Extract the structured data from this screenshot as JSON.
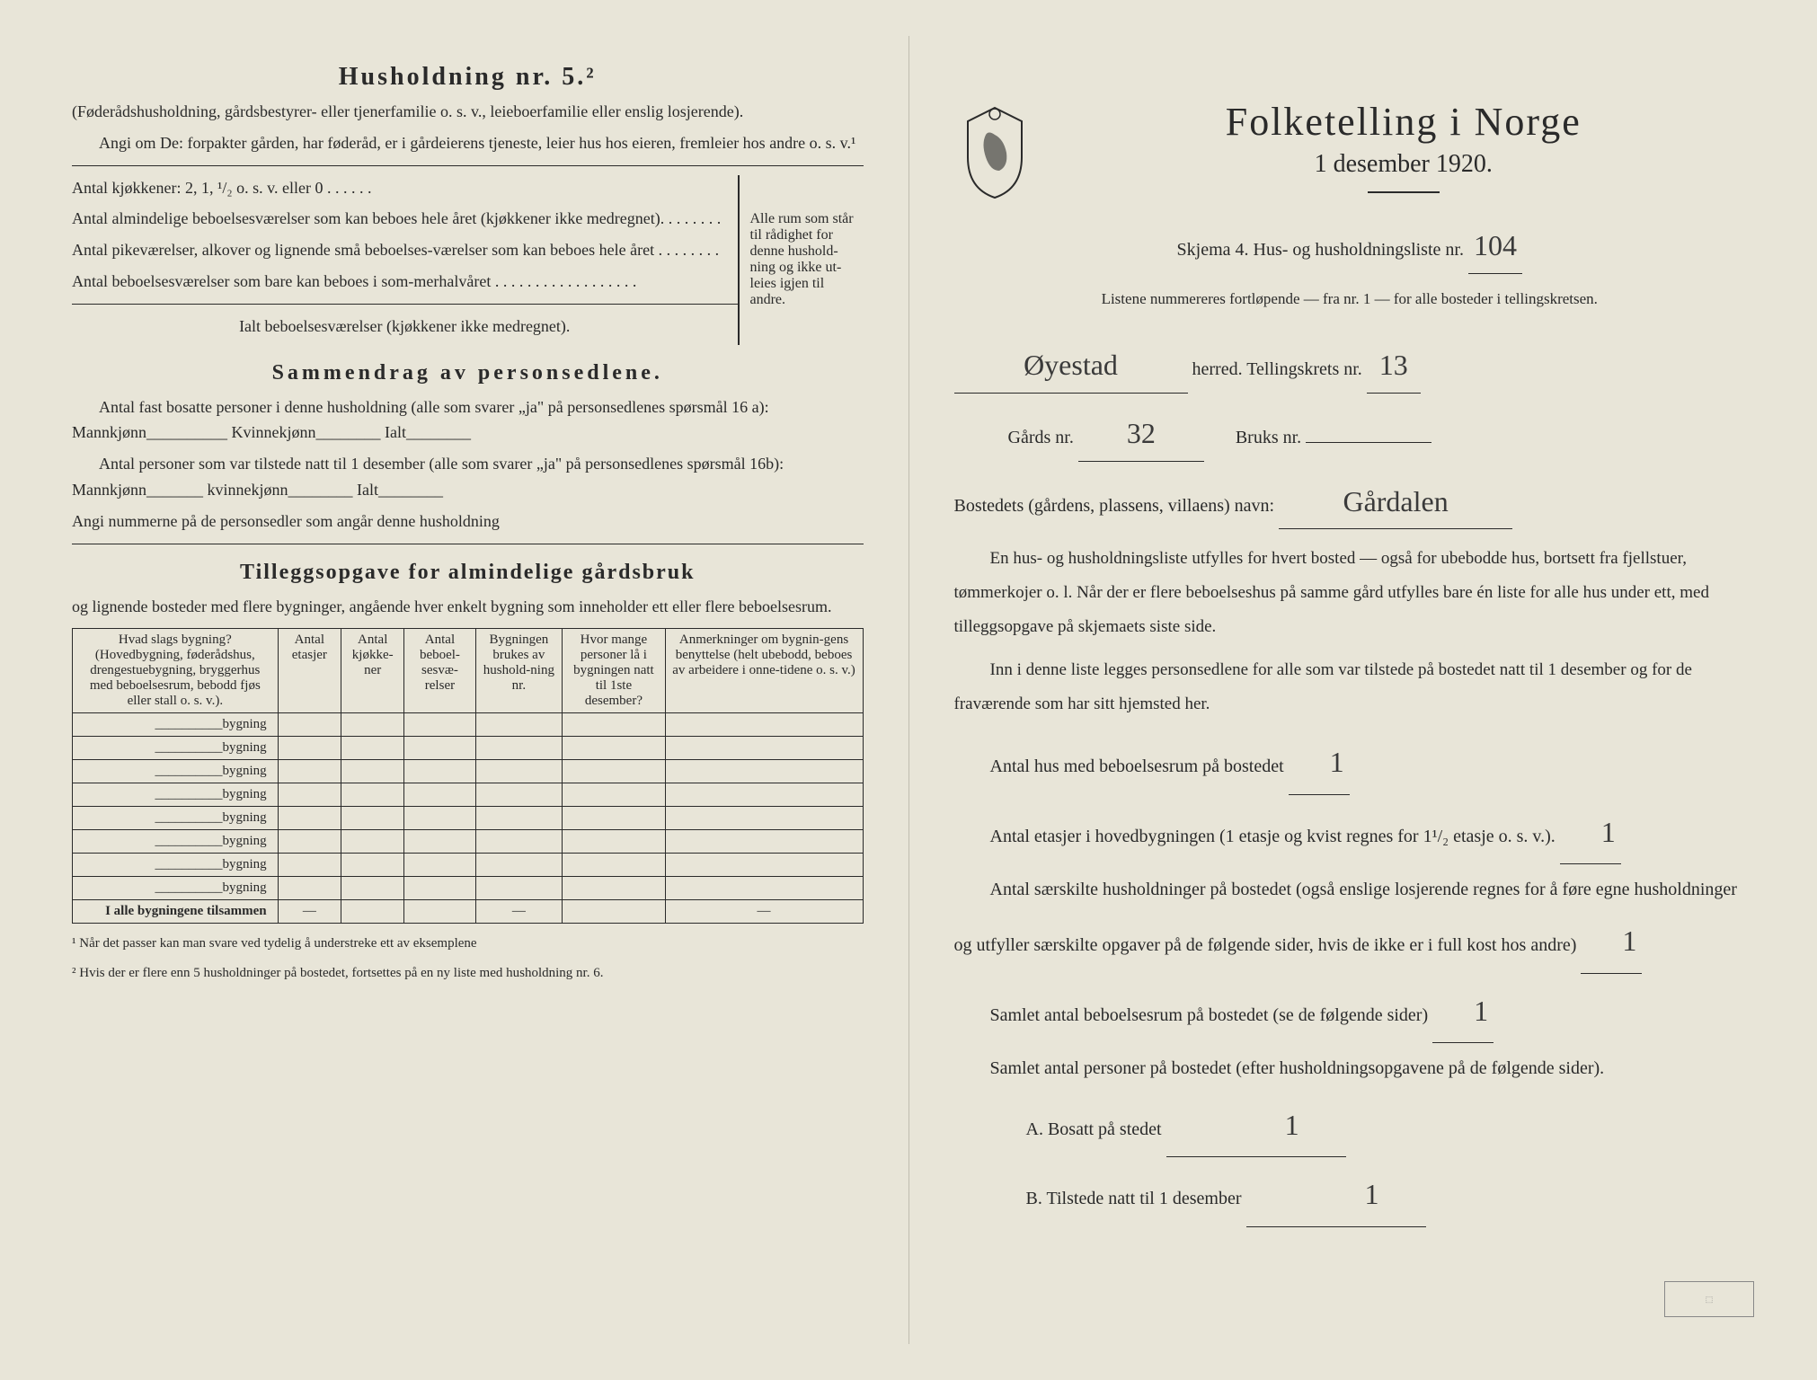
{
  "left": {
    "heading": "Husholdning nr. 5.²",
    "intro1": "(Føderådshusholdning, gårdsbestyrer- eller tjenerfamilie o. s. v., leieboerfamilie eller enslig losjerende).",
    "intro2": "Angi om De:  forpakter gården, har føderåd, er i gårdeierens tjeneste, leier hus hos eieren, fremleier hos andre o. s. v.¹",
    "kitchens": "Antal kjøkkener: 2, 1, ¹/₂ o. s. v. eller 0 . . . . . .",
    "rooms1": "Antal almindelige beboelsesværelser som kan beboes hele året (kjøkkener ikke medregnet). . . . . . . .",
    "rooms2": "Antal pikeværelser, alkover og lignende små beboelses-værelser som kan beboes hele året . . . . . . . .",
    "rooms3": "Antal beboelsesværelser som bare kan beboes i som-merhalvåret . . . . . . . . . . . . . . . . . .",
    "rooms_total": "Ialt beboelsesværelser (kjøkkener ikke medregnet).",
    "bracket_text": "Alle rum som står til rådighet for denne hushold-ning og ikke ut-leies igjen til andre.",
    "summary_title": "Sammendrag av personsedlene.",
    "summary1": "Antal fast bosatte personer i denne husholdning (alle som svarer „ja\" på personsedlenes spørsmål 16 a): Mannkjønn__________ Kvinnekjønn________ Ialt________",
    "summary2": "Antal personer som var tilstede natt til 1 desember (alle som svarer „ja\" på personsedlenes spørsmål 16b): Mannkjønn_______ kvinnekjønn________ Ialt________",
    "summary3": "Angi nummerne på de personsedler som angår denne husholdning",
    "tillegg_title": "Tilleggsopgave for almindelige gårdsbruk",
    "tillegg_sub": "og lignende bosteder med flere bygninger, angående hver enkelt bygning som inneholder ett eller flere beboelsesrum.",
    "table": {
      "headers": [
        "Hvad slags bygning?\n(Hovedbygning, føderådshus, drengestuebygning, bryggerhus med beboelsesrum, bebodd fjøs eller stall o. s. v.).",
        "Antal etasjer",
        "Antal kjøkke-ner",
        "Antal beboel-sesvæ-relser",
        "Bygningen brukes av hushold-ning nr.",
        "Hvor mange personer lå i bygningen natt til 1ste desember?",
        "Anmerkninger om bygnin-gens benyttelse (helt ubebodd, beboes av arbeidere i onne-tidene o. s. v.)"
      ],
      "row_label": "bygning",
      "total_label": "I alle bygningene tilsammen"
    },
    "footnote1": "¹ Når det passer kan man svare ved tydelig å understreke ett av eksemplene",
    "footnote2": "² Hvis der er flere enn 5 husholdninger på bostedet, fortsettes på en ny liste med husholdning nr. 6."
  },
  "right": {
    "title": "Folketelling i Norge",
    "date": "1 desember 1920.",
    "schema_line": "Skjema 4.  Hus- og husholdningsliste nr.",
    "list_nr": "104",
    "sub_line": "Listene nummereres fortløpende — fra nr. 1 — for alle bosteder i tellingskretsen.",
    "herred_hand": "Øyestad",
    "herred_label": "herred.   Tellingskrets nr.",
    "krets_nr": "13",
    "gards_label": "Gårds nr.",
    "gards_nr": "32",
    "bruks_label": "Bruks nr.",
    "bruks_nr": "",
    "bosted_label": "Bostedets (gårdens, plassens, villaens) navn:",
    "bosted_hand": "Gårdalen",
    "para1": "En hus- og husholdningsliste utfylles for hvert bosted — også for ubebodde hus, bortsett fra fjellstuer, tømmerkojer o. l. Når der er flere beboelseshus på samme gård utfylles bare én liste for alle hus under ett, med tilleggsopgave på skjemaets siste side.",
    "para2": "Inn i denne liste legges personsedlene for alle som var tilstede på bostedet natt til 1 desember og for de fraværende som har sitt hjemsted her.",
    "f1": "Antal hus med beboelsesrum på bostedet",
    "f1_val": "1",
    "f2a": "Antal etasjer i hovedbygningen (1 etasje og kvist regnes for 1¹/₂ etasje o. s. v.).",
    "f2_val": "1",
    "f3": "Antal særskilte husholdninger på bostedet (også enslige losjerende regnes for å føre egne husholdninger og utfyller særskilte opgaver på de følgende sider, hvis de ikke er i full kost hos andre)",
    "f3_val": "1",
    "f4": "Samlet antal beboelsesrum på bostedet (se de følgende sider)",
    "f4_val": "1",
    "f5": "Samlet antal personer på bostedet (efter husholdningsopgavene på de følgende sider).",
    "fA": "A.  Bosatt på stedet",
    "fA_val": "1",
    "fB": "B.  Tilstede natt til 1 desember",
    "fB_val": "1"
  },
  "colors": {
    "paper": "#e8e5d8",
    "ink": "#2a2a2a",
    "hand": "#3a3a3a"
  }
}
